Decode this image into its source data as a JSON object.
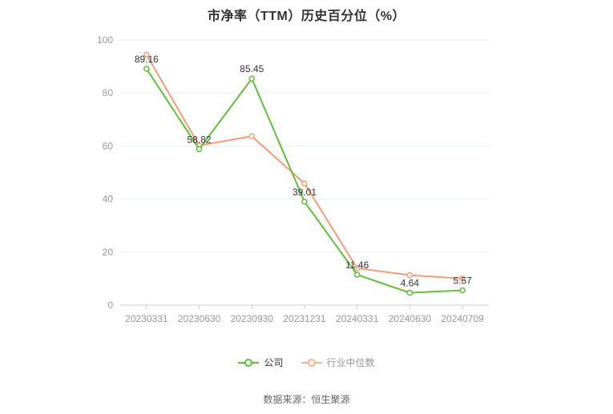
{
  "chart_data": {
    "type": "line",
    "title": "市净率（TTM）历史百分位（%）",
    "categories": [
      "20230331",
      "20230630",
      "20230930",
      "20231231",
      "20240331",
      "20240630",
      "20240709"
    ],
    "series": [
      {
        "name": "公司",
        "color": "#5bc237",
        "legend_icon_color": "#5bc237",
        "legend_text_color": "#333333",
        "values": [
          89.16,
          58.82,
          85.45,
          39.01,
          11.46,
          4.64,
          5.57
        ],
        "point_labels": [
          "89.16",
          "58.82",
          "85.45",
          "39.01",
          "11.46",
          "4.64",
          "5.57"
        ]
      },
      {
        "name": "行业中位数",
        "color": "#f99b72",
        "legend_icon_color": "#f9b untouched",
        "legend_text_color": "#999999",
        "values": [
          94.5,
          60.2,
          63.7,
          45.9,
          13.9,
          11.3,
          10.0
        ],
        "point_labels": []
      }
    ],
    "ylim": [
      0,
      100
    ],
    "yticks": [
      0,
      20,
      40,
      60,
      80,
      100
    ],
    "grid": true,
    "legend_position": "bottom",
    "xlabel": "",
    "ylabel": ""
  },
  "footer": {
    "source": "数据来源：恒生聚源"
  },
  "colors": {
    "grid_line": "#eaedf4",
    "axis_line": "#cccccc",
    "axis_label": "#999999",
    "data_label": "#333333",
    "legend_icon_industry": "#f9b28f"
  }
}
